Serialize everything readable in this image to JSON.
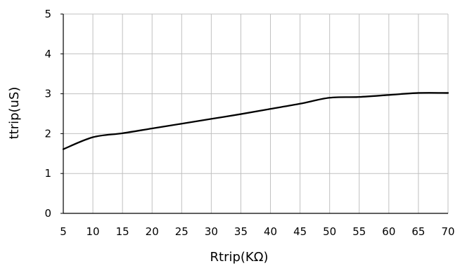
{
  "chart_data": {
    "type": "line",
    "title": "",
    "xlabel": "Rtrip(KΩ)",
    "ylabel": "ttrip(uS)",
    "xlim": [
      5,
      70
    ],
    "ylim": [
      0,
      5
    ],
    "x_ticks": [
      5,
      10,
      15,
      20,
      25,
      30,
      35,
      40,
      45,
      50,
      55,
      60,
      65,
      70
    ],
    "y_ticks": [
      0,
      1,
      2,
      3,
      4,
      5
    ],
    "grid": true,
    "legend": "none",
    "colors": {
      "line": "#000000",
      "grid": "#c0c0c0",
      "axis": "#000000"
    },
    "series": [
      {
        "x": [
          5,
          10,
          15,
          20,
          25,
          30,
          35,
          40,
          45,
          50,
          55,
          60,
          65,
          70
        ],
        "y": [
          1.61,
          1.91,
          2.01,
          2.13,
          2.25,
          2.37,
          2.49,
          2.62,
          2.75,
          2.9,
          2.92,
          2.97,
          3.02,
          3.02
        ]
      }
    ]
  }
}
